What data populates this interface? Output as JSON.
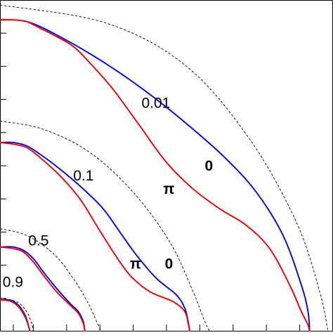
{
  "chart_data": {
    "type": "line",
    "title": "",
    "xlabel": "",
    "ylabel": "",
    "xlim": [
      0,
      1
    ],
    "ylim": [
      0,
      1
    ],
    "grid": false,
    "legend": "none",
    "colors": {
      "phase_0": "#0000ee",
      "phase_pi": "#ee0000",
      "reference": "#000000"
    },
    "levels": [
      {
        "value": "0.01",
        "dashed": {
          "x": [
            0.0,
            0.32,
            0.56,
            0.75,
            0.89,
            0.96,
            0.985
          ],
          "y": [
            0.985,
            0.93,
            0.8,
            0.58,
            0.33,
            0.12,
            0.0
          ]
        },
        "series": [
          {
            "phase": "0",
            "x": [
              0.0,
              0.04,
              0.08,
              0.12,
              0.16,
              0.25,
              0.36,
              0.47,
              0.58,
              0.68,
              0.77,
              0.85,
              0.905,
              0.925,
              0.93
            ],
            "y": [
              0.94,
              0.94,
              0.935,
              0.92,
              0.9,
              0.85,
              0.78,
              0.7,
              0.61,
              0.52,
              0.42,
              0.29,
              0.14,
              0.06,
              0.0
            ]
          },
          {
            "phase": "pi",
            "x": [
              0.0,
              0.04,
              0.08,
              0.12,
              0.16,
              0.22,
              0.27,
              0.34,
              0.42,
              0.5,
              0.58,
              0.66,
              0.74,
              0.81,
              0.87,
              0.905,
              0.925,
              0.93
            ],
            "y": [
              0.94,
              0.94,
              0.935,
              0.915,
              0.895,
              0.86,
              0.81,
              0.73,
              0.62,
              0.51,
              0.43,
              0.37,
              0.32,
              0.25,
              0.14,
              0.06,
              0.02,
              0.0
            ]
          }
        ],
        "labels": [
          {
            "text": "0.01",
            "x": 0.425,
            "y": 0.675
          },
          {
            "text": "0",
            "x": 0.615,
            "y": 0.485,
            "bold": true
          },
          {
            "text": "π",
            "x": 0.49,
            "y": 0.415,
            "bold": true
          }
        ]
      },
      {
        "value": "0.1",
        "dashed": {
          "x": [
            0.0,
            0.13,
            0.27,
            0.4,
            0.51,
            0.58,
            0.615,
            0.63
          ],
          "y": [
            0.635,
            0.61,
            0.54,
            0.42,
            0.27,
            0.12,
            0.03,
            0.0
          ]
        },
        "series": [
          {
            "phase": "0",
            "x": [
              0.0,
              0.04,
              0.08,
              0.12,
              0.18,
              0.25,
              0.31,
              0.36,
              0.41,
              0.47,
              0.53,
              0.555,
              0.565,
              0.57
            ],
            "y": [
              0.57,
              0.57,
              0.56,
              0.535,
              0.49,
              0.43,
              0.37,
              0.3,
              0.23,
              0.16,
              0.11,
              0.07,
              0.03,
              0.0
            ]
          },
          {
            "phase": "pi",
            "x": [
              0.0,
              0.04,
              0.08,
              0.12,
              0.18,
              0.24,
              0.29,
              0.34,
              0.39,
              0.45,
              0.52,
              0.555,
              0.565,
              0.57
            ],
            "y": [
              0.57,
              0.565,
              0.555,
              0.525,
              0.47,
              0.4,
              0.32,
              0.24,
              0.17,
              0.12,
              0.09,
              0.06,
              0.025,
              0.0
            ]
          }
        ],
        "labels": [
          {
            "text": "0.1",
            "x": 0.22,
            "y": 0.455
          },
          {
            "text": "π",
            "x": 0.39,
            "y": 0.19,
            "bold": true
          },
          {
            "text": "0",
            "x": 0.495,
            "y": 0.19,
            "bold": true
          }
        ]
      },
      {
        "value": "0.5",
        "dashed": {
          "x": [
            0.0,
            0.08,
            0.16,
            0.22,
            0.265,
            0.29,
            0.305
          ],
          "y": [
            0.31,
            0.29,
            0.235,
            0.16,
            0.085,
            0.03,
            0.0
          ]
        },
        "series": [
          {
            "phase": "0",
            "x": [
              0.0,
              0.04,
              0.07,
              0.1,
              0.13,
              0.17,
              0.21,
              0.235,
              0.25,
              0.255
            ],
            "y": [
              0.255,
              0.255,
              0.245,
              0.22,
              0.18,
              0.13,
              0.085,
              0.06,
              0.03,
              0.0
            ]
          },
          {
            "phase": "pi",
            "x": [
              0.0,
              0.04,
              0.07,
              0.1,
              0.13,
              0.17,
              0.21,
              0.235,
              0.25,
              0.255
            ],
            "y": [
              0.255,
              0.25,
              0.24,
              0.21,
              0.17,
              0.12,
              0.08,
              0.055,
              0.025,
              0.0
            ]
          }
        ],
        "labels": [
          {
            "text": "0.5",
            "x": 0.085,
            "y": 0.26
          }
        ]
      },
      {
        "value": "0.9",
        "dashed": {
          "x": [
            0.0,
            0.05,
            0.08,
            0.095,
            0.1
          ],
          "y": [
            0.1,
            0.09,
            0.06,
            0.025,
            0.0
          ]
        },
        "series": [
          {
            "phase": "0",
            "x": [
              0.0,
              0.03,
              0.055,
              0.075,
              0.085,
              0.09
            ],
            "y": [
              0.095,
              0.095,
              0.08,
              0.05,
              0.02,
              0.0
            ]
          },
          {
            "phase": "pi",
            "x": [
              0.0,
              0.03,
              0.055,
              0.075,
              0.085,
              0.09
            ],
            "y": [
              0.095,
              0.092,
              0.075,
              0.045,
              0.018,
              0.0
            ]
          }
        ],
        "labels": [
          {
            "text": "0.9",
            "x": 0.008,
            "y": 0.135
          }
        ]
      }
    ],
    "x_ticks": [
      0.04,
      0.1,
      0.2,
      0.3,
      0.4,
      0.5,
      0.6,
      0.7,
      0.8,
      0.9
    ],
    "y_ticks": [
      0.9,
      0.8,
      0.7,
      0.6,
      0.5,
      0.4,
      0.3,
      0.2,
      0.1
    ]
  }
}
